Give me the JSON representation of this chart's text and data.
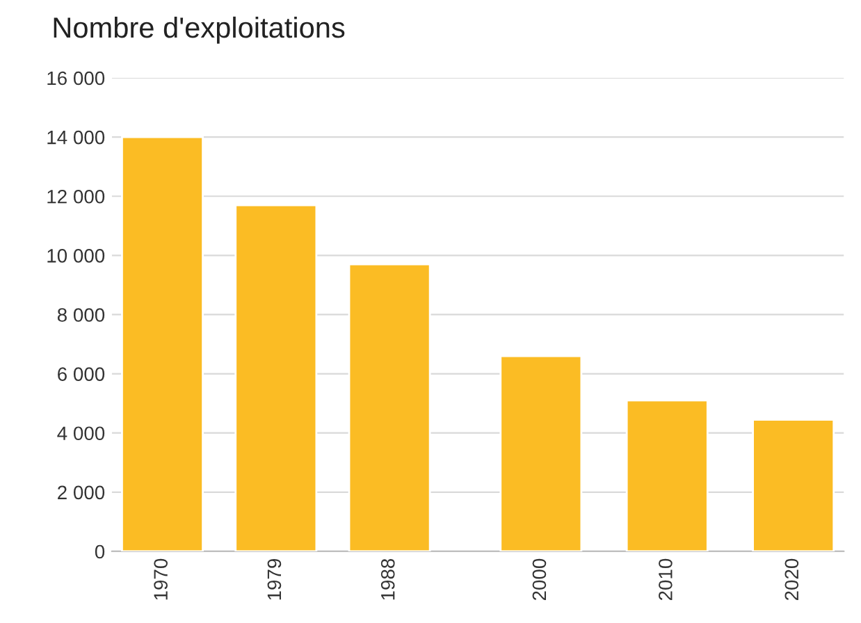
{
  "chart_data": {
    "type": "bar",
    "title": "Nombre d'exploitations",
    "x": [
      1970,
      1979,
      1988,
      2000,
      2010,
      2020
    ],
    "values": [
      14000,
      11700,
      9700,
      6600,
      5100,
      4450
    ],
    "color": "#fbbc24",
    "xlim": [
      1966,
      2024
    ],
    "xticks": [
      1970,
      1979,
      1988,
      2000,
      2010,
      2020
    ],
    "ylim": [
      0,
      16000
    ],
    "yticks": [
      {
        "value": 0,
        "label": "0"
      },
      {
        "value": 2000,
        "label": "2 000"
      },
      {
        "value": 4000,
        "label": "4 000"
      },
      {
        "value": 6000,
        "label": "6 000"
      },
      {
        "value": 8000,
        "label": "8 000"
      },
      {
        "value": 10000,
        "label": "10 000"
      },
      {
        "value": 12000,
        "label": "12 000"
      },
      {
        "value": 14000,
        "label": "14 000"
      },
      {
        "value": 16000,
        "label": "16 000"
      }
    ],
    "grid": "y"
  }
}
